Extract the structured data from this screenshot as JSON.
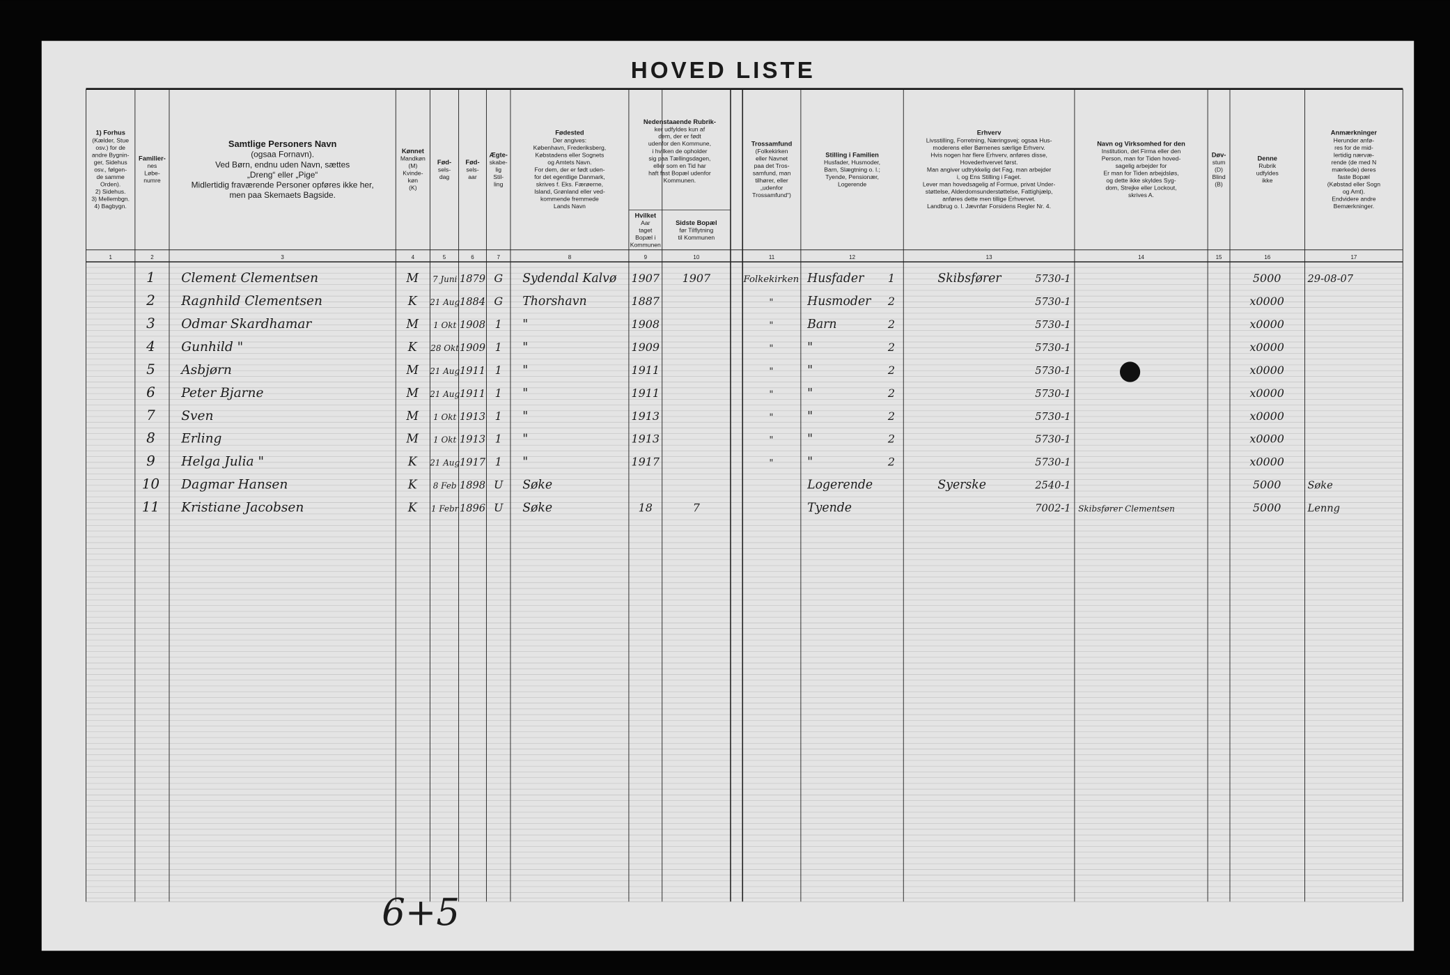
{
  "title": "HOVED LISTE",
  "headers": [
    {
      "number": "1",
      "lines": [
        "1) Forhus",
        "(Kælder, Stue",
        "osv.) for de",
        "andre Bygnin-",
        "ger, Sidehus",
        "osv., følgen-",
        "de samme",
        "Orden).",
        "2) Sidehus.",
        "3) Mellembgn.",
        "4) Bagbygn."
      ]
    },
    {
      "number": "2",
      "lines": [
        "Familier-",
        "nes",
        "Løbe-",
        "numre"
      ]
    },
    {
      "number": "3",
      "lines": [
        "Samtlige Personers Navn",
        "(ogsaa Fornavn).",
        "Ved Børn, endnu uden Navn, sættes",
        "„Dreng“ eller „Pige“",
        "Midlertidig fraværende Personer opføres ikke her,",
        "men paa Skemaets Bagside."
      ]
    },
    {
      "number": "4",
      "lines": [
        "Kønnet",
        "Mandkøn",
        "(M)",
        "Kvinde-",
        "køn",
        "(K)"
      ]
    },
    {
      "number": "5",
      "lines": [
        "Fød-",
        "sels-",
        "dag"
      ]
    },
    {
      "number": "6",
      "lines": [
        "Fød-",
        "sels-",
        "aar"
      ]
    },
    {
      "number": "7",
      "lines": [
        "Ægte-",
        "skabe-",
        "lig",
        "Stil-",
        "ling"
      ]
    },
    {
      "number": "8",
      "lines": [
        "Fødested",
        "Der angives:",
        "København, Frederiksberg,",
        "Købstadens eller Sognets",
        "og Amtets Navn.",
        "For dem, der er født uden-",
        "for det egentlige Danmark,",
        "skrives f. Eks. Færøerne,",
        "Island, Grønland eller ved-",
        "kommende fremmede",
        "Lands Navn"
      ]
    },
    {
      "number": "9",
      "lines": [
        "Hvilket",
        "Aar",
        "taget",
        "Bopæl i",
        "Kommunen"
      ]
    },
    {
      "number": "10",
      "lines": [
        "Sidste Bopæl",
        "før Tilflytning",
        "til Kommunen"
      ]
    },
    {
      "number": "11",
      "lines": [
        "Trossamfund",
        "(Folkekirken",
        "eller Navnet",
        "paa det Tros-",
        "samfund, man",
        "tilhører, eller",
        "„udenfor",
        "Trossamfund“)"
      ]
    },
    {
      "number": "12",
      "lines": [
        "Stilling i Familien",
        "Husfader, Husmoder,",
        "Barn, Slægtning o. l.;",
        "Tyende, Pensionær,",
        "Logerende"
      ]
    },
    {
      "number": "13",
      "lines": [
        "Erhverv",
        "Livsstilling, Forretning, Næringsvej; ogsaa Hus-",
        "moderens eller Børnenes særlige Erhverv.",
        "Hvis nogen har flere Erhverv, anføres disse,",
        "Hovederhvervet først.",
        "Man angiver udtrykkelig det Fag, man arbejder",
        "i, og Ens Stilling i Faget.",
        "Lever man hovedsagelig af Formue, privat Under-",
        "støttelse, Alderdomsunderstøttelse, Fattighjælp,",
        "anføres dette men tillige Erhvervet.",
        "Landbrug o. l. Jævnfør Forsidens Regler Nr. 4."
      ]
    },
    {
      "number": "14",
      "lines": [
        "Navn og Virksomhed for den",
        "Institution, det Firma eller den",
        "Person, man for Tiden hoved-",
        "sagelig arbejder for",
        "Er man for Tiden arbejdsløs,",
        "og dette ikke skyldes Syg-",
        "dom, Strejke eller Lockout,",
        "skrives A."
      ]
    },
    {
      "number": "15",
      "lines": [
        "Døv-",
        "stum",
        "(D)",
        "Blind",
        "(B)"
      ]
    },
    {
      "number": "16",
      "lines": [
        "Denne",
        "Rubrik",
        "udfyldes",
        "ikke"
      ]
    },
    {
      "number": "17",
      "lines": [
        "Anmærkninger",
        "Herunder anfø-",
        "res for de mid-",
        "lertidig nærvæ-",
        "rende (de med N",
        "mærkede) deres",
        "faste Bopæl",
        "(Købstad eller Sogn",
        "og Amt).",
        "Endvidere andre",
        "Bemærkninger."
      ]
    }
  ],
  "shared_header_9_10": [
    "Nedenstaaende Rubrik-",
    "ker udfyldes kun af",
    "dem, der er født",
    "udenfor den Kommune,",
    "i hvilken de opholder",
    "sig paa Tællingsdagen,",
    "eller som en Tid har",
    "haft fast Bopæl udenfor",
    "Kommunen."
  ],
  "rows": [
    {
      "no": "1",
      "name": "Clement Clementsen",
      "sex": "M",
      "birthday": "7 Juni",
      "birthyear": "1879",
      "marital": "G",
      "birthplace": "Sydendal Kalvø",
      "year_moved": "1907",
      "last_residence": "1907",
      "religion": "Folkekirken",
      "family_position": "Husfader",
      "position_code": "1",
      "occupation": "Skibsfører",
      "occupation_code": "5730-1",
      "col16": "5000",
      "remarks": "29-08-07"
    },
    {
      "no": "2",
      "name": "Ragnhild Clementsen",
      "sex": "K",
      "birthday": "21 Aug",
      "birthyear": "1884",
      "marital": "G",
      "birthplace": "Thorshavn",
      "year_moved": "1887",
      "religion": "\"",
      "family_position": "Husmoder",
      "position_code": "2",
      "occupation_code": "5730-1",
      "col16": "x0000"
    },
    {
      "no": "3",
      "name": "Odmar Skardhamar",
      "sex": "M",
      "birthday": "1 Okt",
      "birthyear": "1908",
      "marital": "1",
      "birthplace": "\"",
      "year_moved": "1908",
      "religion": "\"",
      "family_position": "Barn",
      "position_code": "2",
      "occupation_code": "5730-1",
      "col16": "x0000"
    },
    {
      "no": "4",
      "name": "Gunhild \"",
      "sex": "K",
      "birthday": "28 Okt",
      "birthyear": "1909",
      "marital": "1",
      "birthplace": "\"",
      "year_moved": "1909",
      "religion": "\"",
      "family_position": "\"",
      "position_code": "2",
      "occupation_code": "5730-1",
      "col16": "x0000"
    },
    {
      "no": "5",
      "name": "Asbjørn",
      "sex": "M",
      "birthday": "21 Aug",
      "birthyear": "1911",
      "marital": "1",
      "birthplace": "\"",
      "year_moved": "1911",
      "religion": "\"",
      "family_position": "\"",
      "position_code": "2",
      "occupation_code": "5730-1",
      "col16": "x0000"
    },
    {
      "no": "6",
      "name": "Peter Bjarne",
      "sex": "M",
      "birthday": "21 Aug",
      "birthyear": "1911",
      "marital": "1",
      "birthplace": "\"",
      "year_moved": "1911",
      "religion": "\"",
      "family_position": "\"",
      "position_code": "2",
      "occupation_code": "5730-1",
      "col16": "x0000"
    },
    {
      "no": "7",
      "name": "Sven",
      "sex": "M",
      "birthday": "1 Okt",
      "birthyear": "1913",
      "marital": "1",
      "birthplace": "\"",
      "year_moved": "1913",
      "religion": "\"",
      "family_position": "\"",
      "position_code": "2",
      "occupation_code": "5730-1",
      "col16": "x0000"
    },
    {
      "no": "8",
      "name": "Erling",
      "sex": "M",
      "birthday": "1 Okt",
      "birthyear": "1913",
      "marital": "1",
      "birthplace": "\"",
      "year_moved": "1913",
      "religion": "\"",
      "family_position": "\"",
      "position_code": "2",
      "occupation_code": "5730-1",
      "col16": "x0000"
    },
    {
      "no": "9",
      "name": "Helga Julia \"",
      "sex": "K",
      "birthday": "21 Aug",
      "birthyear": "1917",
      "marital": "1",
      "birthplace": "\"",
      "year_moved": "1917",
      "religion": "\"",
      "family_position": "\"",
      "position_code": "2",
      "occupation_code": "5730-1",
      "col16": "x0000"
    },
    {
      "no": "10",
      "name": "Dagmar Hansen",
      "sex": "K",
      "birthday": "8 Feb",
      "birthyear": "1898",
      "marital": "U",
      "birthplace": "Søke",
      "family_position": "Logerende",
      "occupation": "Syerske",
      "occupation_code": "2540-1",
      "col16": "5000",
      "remarks": "Søke"
    },
    {
      "no": "11",
      "name": "Kristiane Jacobsen",
      "sex": "K",
      "birthday": "1 Febr",
      "birthyear": "1896",
      "marital": "U",
      "birthplace": "Søke",
      "year_moved": "18",
      "last_residence": "7",
      "family_position": "Tyende",
      "occupation_code": "7002-1",
      "employer": "Skibsfører Clementsen",
      "col16": "5000",
      "remarks": "Lenng"
    }
  ],
  "footer_note": "6+5"
}
